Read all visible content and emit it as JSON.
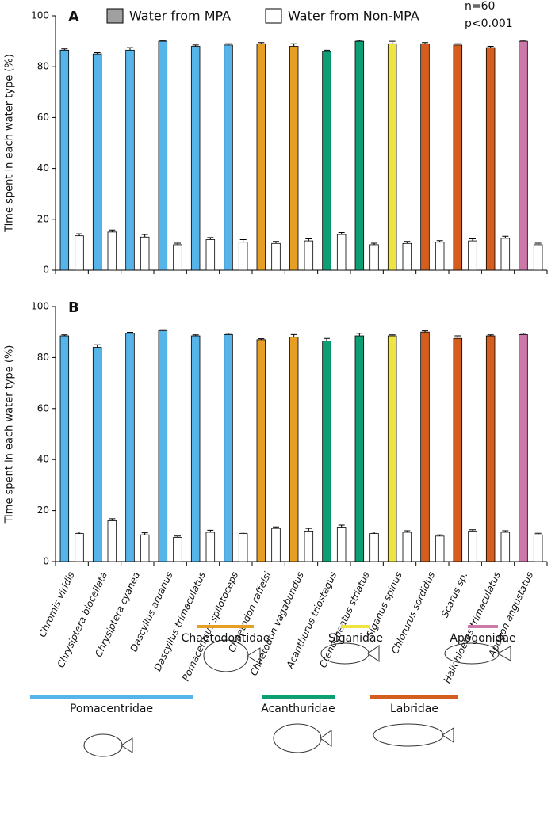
{
  "chart_data": [
    {
      "type": "bar",
      "label": "A",
      "y_label": "Time spent in each water type (%)",
      "annotations": [
        "n=60",
        "p<0.001"
      ],
      "series": [
        {
          "name": "Water from MPA",
          "color": "#a0a0a0",
          "colors": [
            "#56b4e9",
            "#56b4e9",
            "#56b4e9",
            "#56b4e9",
            "#56b4e9",
            "#56b4e9",
            "#e69f24",
            "#e69f24",
            "#0e9e73",
            "#0e9e73",
            "#f0e442",
            "#d55e1f",
            "#d55e1f",
            "#d55e1f",
            "#cc79a7"
          ],
          "values": [
            86.5,
            85,
            86.5,
            90,
            88,
            88.5,
            89,
            88,
            86,
            90,
            89,
            89,
            88.5,
            87.5,
            90
          ],
          "errors": [
            0.5,
            0.5,
            1,
            0.3,
            0.5,
            0.5,
            0.5,
            1,
            0.5,
            0.4,
            1,
            0.5,
            0.5,
            0.5,
            0.4
          ]
        },
        {
          "name": "Water from Non-MPA",
          "color": "#ffffff",
          "values": [
            13.5,
            15,
            13,
            10,
            12,
            11,
            10.5,
            11.5,
            14,
            10,
            10.5,
            11,
            11.5,
            12.5,
            10
          ],
          "errors": [
            0.8,
            0.8,
            1,
            0.6,
            0.8,
            1,
            0.8,
            0.8,
            0.8,
            0.6,
            0.8,
            0.6,
            0.8,
            0.8,
            0.6
          ]
        }
      ],
      "ylim": [
        0,
        100
      ],
      "yticks": [
        0,
        20,
        40,
        60,
        80,
        100
      ]
    },
    {
      "type": "bar",
      "label": "B",
      "y_label": "Time spent in each water type (%)",
      "categories": [
        "Chromis viridis",
        "Chrysiptera biocellata",
        "Chrysiptera cyanea",
        "Dascyllus aruanus",
        "Dascyllus trimaculatus",
        "Pomacentrus spilotoceps",
        "Chaetodon raffelsi",
        "Chaetodon vagabundus",
        "Acanthurus triostegus",
        "Ctenocheatus striatus",
        "Siganus spinus",
        "Chlorurus sordidus",
        "Scarus sp.",
        "Halichloeres trimaculatus",
        "Apogon angustatus"
      ],
      "series": [
        {
          "color": "#a0a0a0",
          "colors": [
            "#56b4e9",
            "#56b4e9",
            "#56b4e9",
            "#56b4e9",
            "#56b4e9",
            "#56b4e9",
            "#e69f24",
            "#e69f24",
            "#0e9e73",
            "#0e9e73",
            "#f0e442",
            "#d55e1f",
            "#d55e1f",
            "#d55e1f",
            "#cc79a7"
          ],
          "values": [
            88.5,
            84,
            89.5,
            90.5,
            88.5,
            89,
            87,
            88,
            86.5,
            88.5,
            88.5,
            90,
            87.5,
            88.5,
            89
          ],
          "errors": [
            0.4,
            1,
            0.4,
            0.4,
            0.4,
            0.5,
            0.4,
            1,
            1,
            1,
            0.4,
            0.5,
            1,
            0.4,
            0.5
          ]
        },
        {
          "color": "#ffffff",
          "values": [
            11,
            16,
            10.5,
            9.5,
            11.5,
            11,
            13,
            12,
            13.5,
            11,
            11.5,
            10,
            12,
            11.5,
            10.5
          ],
          "errors": [
            0.6,
            0.8,
            0.8,
            0.5,
            0.8,
            0.6,
            0.6,
            1,
            0.8,
            0.6,
            0.6,
            0.5,
            0.5,
            0.6,
            0.6
          ]
        }
      ],
      "ylim": [
        0,
        100
      ],
      "yticks": [
        0,
        20,
        40,
        60,
        80,
        100
      ]
    }
  ],
  "families": [
    {
      "name": "Chaetodontidae",
      "color": "#e69f24"
    },
    {
      "name": "Siganidae",
      "color": "#f0e442"
    },
    {
      "name": "Apogonidae",
      "color": "#cc79a7"
    },
    {
      "name": "Pomacentridae",
      "color": "#56b4e9"
    },
    {
      "name": "Acanthuridae",
      "color": "#0e9e73"
    },
    {
      "name": "Labridae",
      "color": "#d55e1f"
    }
  ]
}
